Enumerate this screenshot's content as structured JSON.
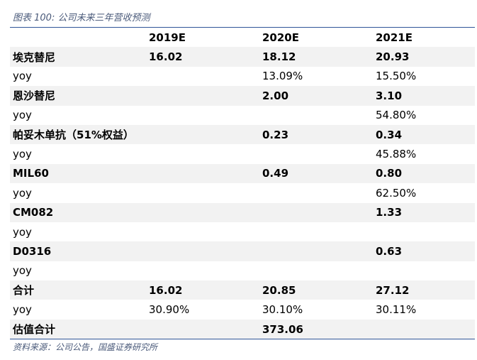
{
  "caption": "图表 100: 公司未来三年营收预测",
  "table": {
    "header": [
      null,
      "2019E",
      "2020E",
      "2021E"
    ],
    "rows": [
      [
        "埃克替尼",
        "16.02",
        "18.12",
        "20.93"
      ],
      [
        "yoy",
        null,
        "13.09%",
        "15.50%"
      ],
      [
        "恩沙替尼",
        null,
        "2.00",
        "3.10"
      ],
      [
        "yoy",
        null,
        null,
        "54.80%"
      ],
      [
        "帕妥木单抗（51%权益）",
        null,
        "0.23",
        "0.34"
      ],
      [
        "yoy",
        null,
        null,
        "45.88%"
      ],
      [
        "MIL60",
        null,
        "0.49",
        "0.80"
      ],
      [
        "yoy",
        null,
        null,
        "62.50%"
      ],
      [
        "CM082",
        null,
        null,
        "1.33"
      ],
      [
        "yoy",
        null,
        null,
        null
      ],
      [
        "D0316",
        null,
        null,
        "0.63"
      ],
      [
        "yoy",
        null,
        null,
        null
      ],
      [
        "合计",
        "16.02",
        "20.85",
        "27.12"
      ],
      [
        "yoy",
        "30.90%",
        "30.10%",
        "30.11%"
      ],
      [
        "估值合计",
        null,
        "373.06",
        null
      ]
    ]
  },
  "source": "资料来源：公司公告，国盛证券研究所"
}
